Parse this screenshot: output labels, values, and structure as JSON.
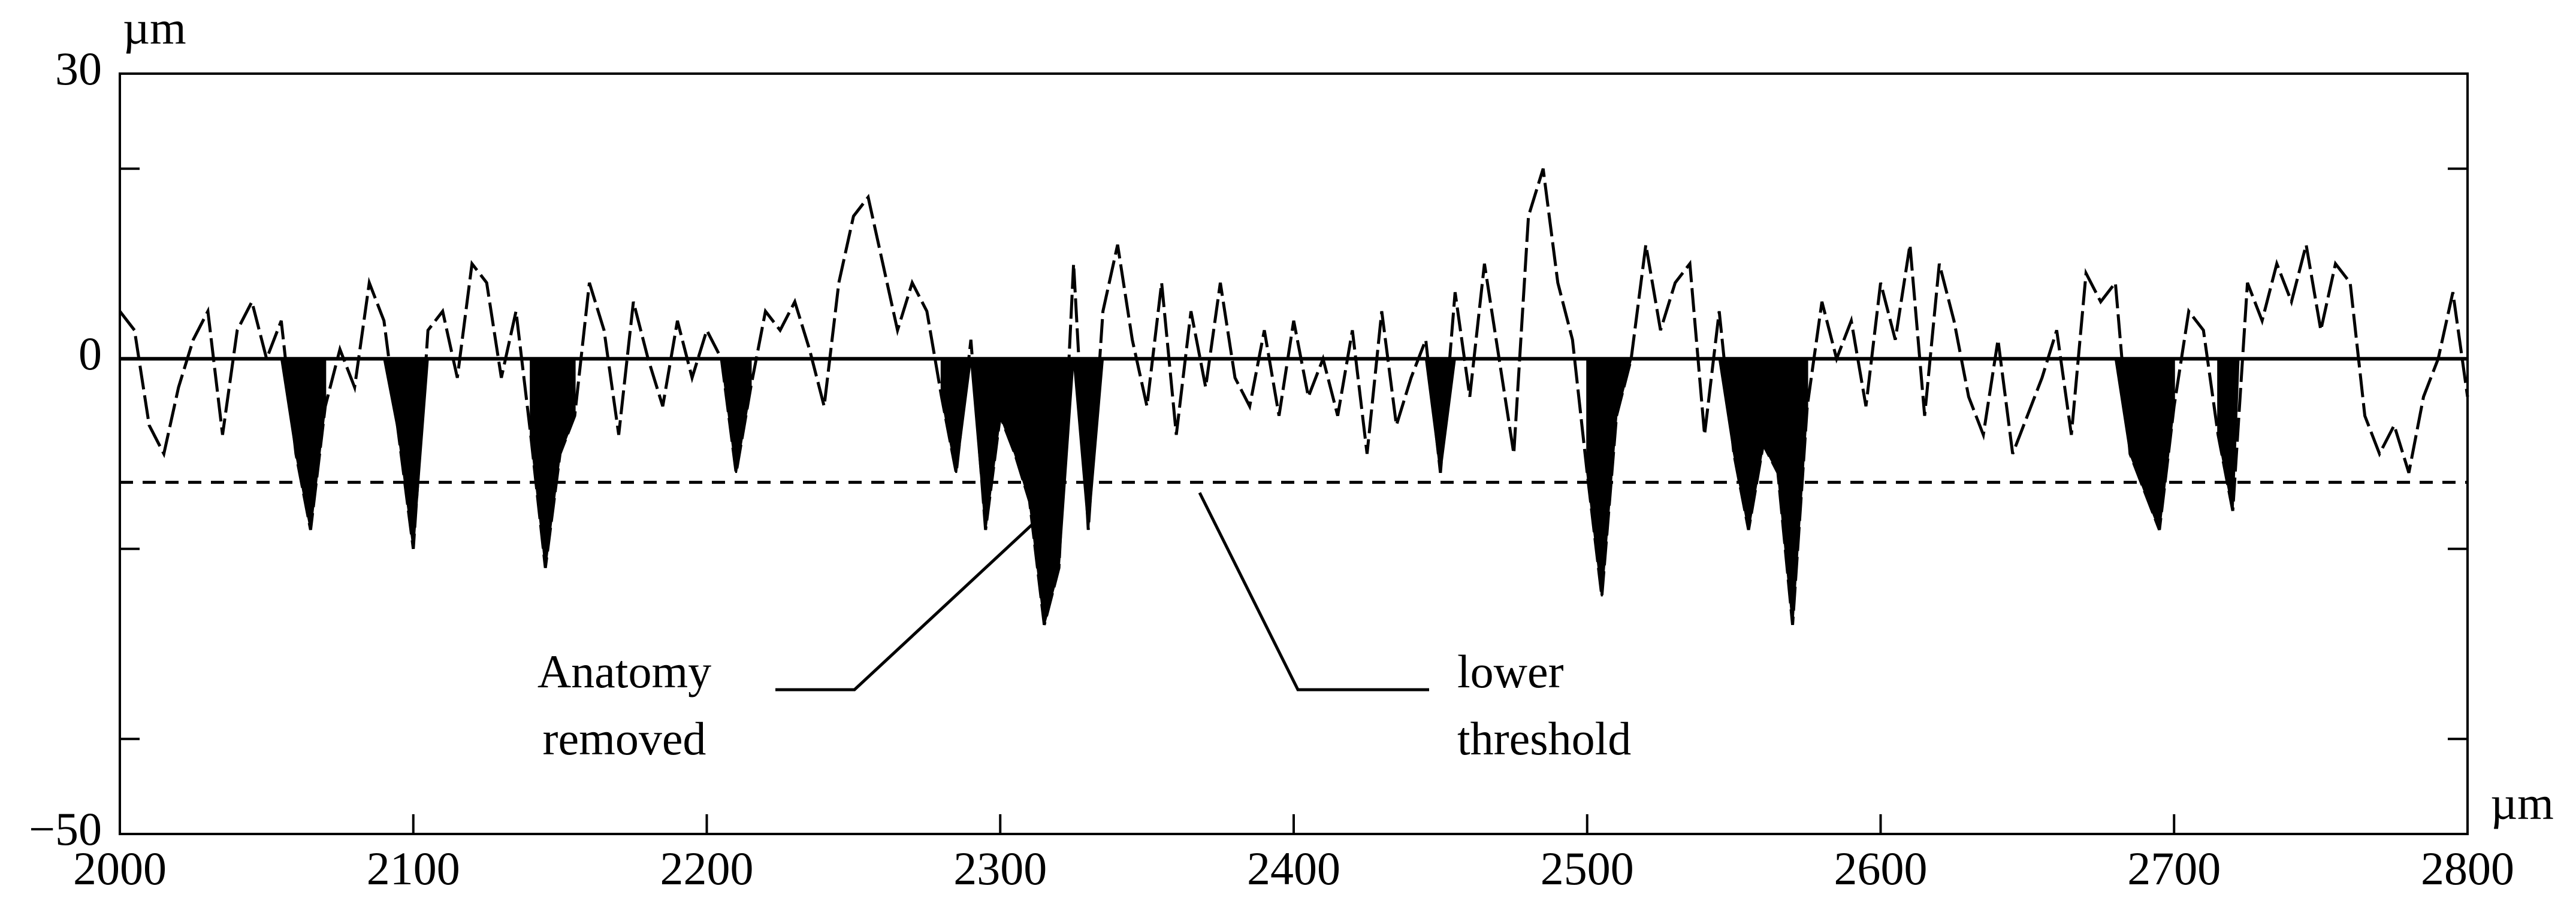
{
  "chart_data": {
    "type": "line",
    "x_unit": "µm",
    "y_unit": "µm",
    "xlim": [
      2000,
      2800
    ],
    "xticks": [
      2000,
      2100,
      2200,
      2300,
      2400,
      2500,
      2600,
      2700,
      2800
    ],
    "ylim": [
      -50,
      30
    ],
    "yticks": [
      {
        "value": -50,
        "label": "−50"
      },
      0,
      30
    ],
    "yminorticks": [
      20,
      -20,
      -40
    ],
    "threshold": -13,
    "removed_regions": [
      [
        2055,
        2070
      ],
      [
        2090,
        2110
      ],
      [
        2140,
        2155
      ],
      [
        2205,
        2215
      ],
      [
        2280,
        2335
      ],
      [
        2445,
        2455
      ],
      [
        2500,
        2515
      ],
      [
        2545,
        2575
      ],
      [
        2680,
        2700
      ],
      [
        2715,
        2722
      ]
    ],
    "annotations": [
      {
        "lines": [
          "Anatomy",
          "removed"
        ]
      },
      {
        "lines": [
          "lower",
          "threshold"
        ]
      }
    ],
    "series": [
      {
        "color": "#000000",
        "x": [
          2000,
          2005,
          2010,
          2015,
          2020,
          2025,
          2030,
          2035,
          2040,
          2045,
          2050,
          2055,
          2060,
          2065,
          2070,
          2075,
          2080,
          2085,
          2090,
          2095,
          2100,
          2105,
          2110,
          2115,
          2120,
          2125,
          2130,
          2135,
          2140,
          2145,
          2150,
          2155,
          2160,
          2165,
          2170,
          2175,
          2180,
          2185,
          2190,
          2195,
          2200,
          2205,
          2210,
          2215,
          2220,
          2225,
          2230,
          2235,
          2240,
          2245,
          2250,
          2255,
          2260,
          2265,
          2270,
          2275,
          2280,
          2285,
          2290,
          2295,
          2300,
          2305,
          2310,
          2315,
          2320,
          2325,
          2330,
          2335,
          2340,
          2345,
          2350,
          2355,
          2360,
          2365,
          2370,
          2375,
          2380,
          2385,
          2390,
          2395,
          2400,
          2405,
          2410,
          2415,
          2420,
          2425,
          2430,
          2435,
          2440,
          2445,
          2450,
          2455,
          2460,
          2465,
          2470,
          2475,
          2480,
          2485,
          2490,
          2495,
          2500,
          2505,
          2510,
          2515,
          2520,
          2525,
          2530,
          2535,
          2540,
          2545,
          2550,
          2555,
          2560,
          2565,
          2570,
          2575,
          2580,
          2585,
          2590,
          2595,
          2600,
          2605,
          2610,
          2615,
          2620,
          2625,
          2630,
          2635,
          2640,
          2645,
          2650,
          2655,
          2660,
          2665,
          2670,
          2675,
          2680,
          2685,
          2690,
          2695,
          2700,
          2705,
          2710,
          2715,
          2720,
          2725,
          2730,
          2735,
          2740,
          2745,
          2750,
          2755,
          2760,
          2765,
          2770,
          2775,
          2780,
          2785,
          2790,
          2795,
          2800
        ],
        "values": [
          5,
          3,
          -7,
          -10,
          -3,
          2,
          5,
          -8,
          3,
          6,
          0,
          4,
          -10,
          -18,
          -5,
          1,
          -3,
          8,
          4,
          -8,
          -20,
          3,
          5,
          -2,
          10,
          8,
          -2,
          5,
          -8,
          -22,
          -10,
          -6,
          8,
          3,
          -8,
          6,
          0,
          -5,
          4,
          -2,
          3,
          0,
          -12,
          -3,
          5,
          3,
          6,
          1,
          -5,
          8,
          15,
          17,
          10,
          3,
          8,
          5,
          -4,
          -12,
          2,
          -18,
          -6,
          -10,
          -15,
          -28,
          -22,
          10,
          -18,
          5,
          12,
          2,
          -5,
          8,
          -8,
          5,
          -3,
          8,
          -2,
          -5,
          3,
          -6,
          4,
          -4,
          0,
          -6,
          3,
          -10,
          5,
          -7,
          -2,
          2,
          -12,
          7,
          -4,
          10,
          0,
          -10,
          15,
          20,
          8,
          2,
          -12,
          -25,
          -6,
          0,
          12,
          3,
          8,
          10,
          -8,
          5,
          -10,
          -18,
          -9,
          -12,
          -28,
          -5,
          6,
          0,
          4,
          -5,
          8,
          2,
          12,
          -6,
          10,
          4,
          -4,
          -8,
          2,
          -10,
          -6,
          -2,
          3,
          -8,
          9,
          6,
          8,
          -10,
          -14,
          -18,
          -5,
          5,
          3,
          -8,
          -16,
          8,
          4,
          10,
          6,
          12,
          3,
          10,
          8,
          -6,
          -10,
          -7,
          -12,
          -4,
          0,
          7,
          -4
        ]
      }
    ]
  }
}
